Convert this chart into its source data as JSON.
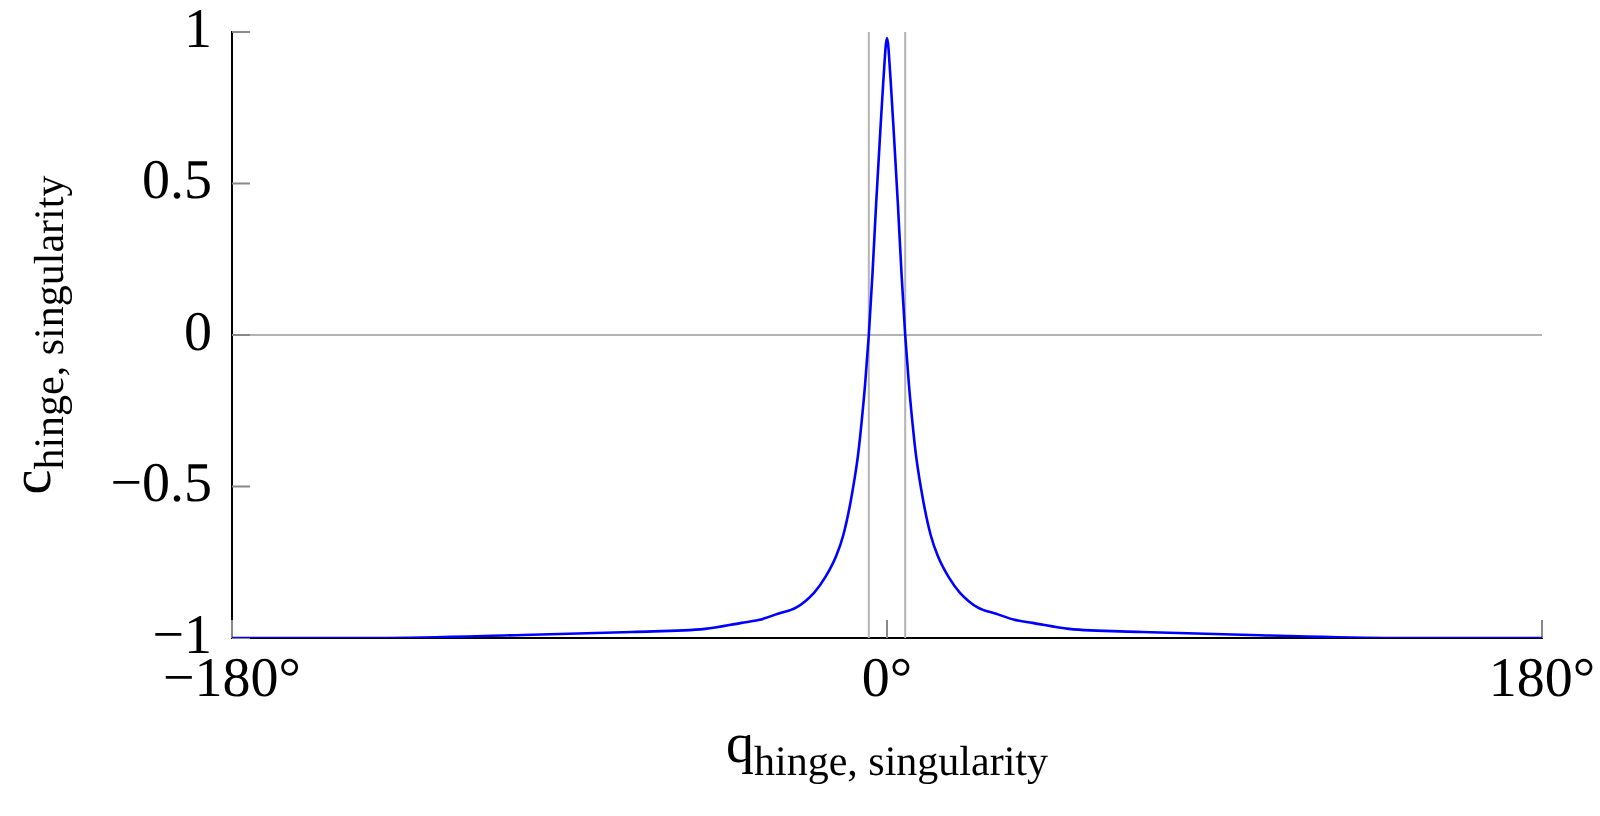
{
  "chart_data": {
    "type": "line",
    "xlabel": "q$_{hinge, singularity}$",
    "ylabel": "c$_{hinge, singularity}$",
    "x": [
      -180,
      -140,
      -100,
      -70,
      -50,
      -40,
      -35,
      -30,
      -25,
      -20,
      -17,
      -14,
      -12,
      -10,
      -8,
      -7,
      -6,
      -5,
      -4,
      -3,
      -2,
      -1,
      0,
      1,
      2,
      3,
      4,
      5,
      6,
      7,
      8,
      10,
      12,
      14,
      17,
      20,
      25,
      30,
      35,
      40,
      50,
      70,
      100,
      140,
      180
    ],
    "series": [
      {
        "color": "#0000ff",
        "values": [
          -1,
          -1,
          -0.99,
          -0.98,
          -0.97,
          -0.95,
          -0.94,
          -0.92,
          -0.9,
          -0.85,
          -0.8,
          -0.73,
          -0.66,
          -0.55,
          -0.4,
          -0.29,
          -0.16,
          0,
          0.2,
          0.43,
          0.64,
          0.84,
          0.98,
          0.84,
          0.64,
          0.43,
          0.2,
          0,
          -0.16,
          -0.29,
          -0.4,
          -0.55,
          -0.66,
          -0.73,
          -0.8,
          -0.85,
          -0.9,
          -0.92,
          -0.94,
          -0.95,
          -0.97,
          -0.98,
          -0.99,
          -1,
          -1
        ]
      }
    ],
    "xlim": [
      -180,
      180
    ],
    "ylim": [
      -1,
      1
    ],
    "xticks": [
      {
        "value": -180,
        "label": "−180°"
      },
      {
        "value": 0,
        "label": "0°"
      },
      {
        "value": 180,
        "label": "180°"
      }
    ],
    "yticks": [
      {
        "value": -1,
        "label": "−1"
      },
      {
        "value": -0.5,
        "label": "−0.5"
      },
      0,
      0.5,
      1
    ],
    "ref_lines": [
      {
        "axis": "y",
        "value": 0,
        "color": "#b3b3b3"
      },
      {
        "axis": "x",
        "value": -5,
        "color": "#b3b3b3"
      },
      {
        "axis": "x",
        "value": 5,
        "color": "#b3b3b3"
      }
    ],
    "marker": "none",
    "line_style": "solid"
  }
}
